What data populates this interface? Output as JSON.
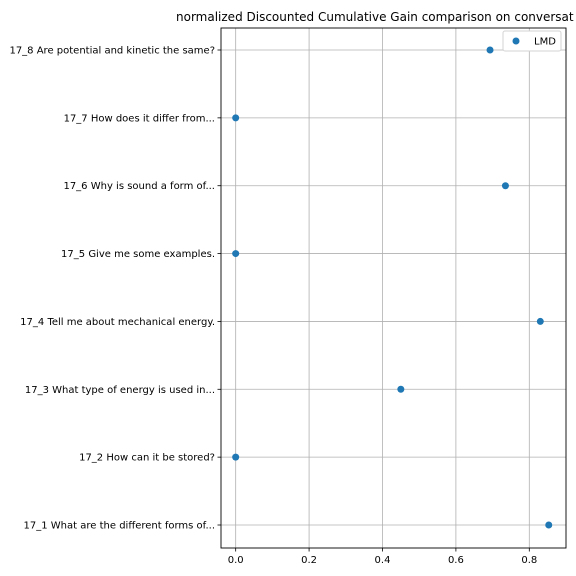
{
  "chart_data": {
    "type": "scatter",
    "title": "normalized Discounted Cumulative Gain comparison on conversat",
    "xlabel": "",
    "ylabel": "",
    "xlim": [
      -0.04,
      0.9
    ],
    "x_ticks": [
      0.0,
      0.2,
      0.4,
      0.6,
      0.8
    ],
    "x_tick_labels": [
      "0.0",
      "0.2",
      "0.4",
      "0.6",
      "0.8"
    ],
    "categories": [
      "17_1 What are the different forms of...",
      "17_2 How can it be stored?",
      "17_3 What type of energy is used in...",
      "17_4 Tell me about mechanical energy.",
      "17_5 Give me some examples.",
      "17_6 Why is sound a form of...",
      "17_7 How does it differ from...",
      "17_8 Are potential and kinetic the same?"
    ],
    "grid": true,
    "legend_position": "top-right",
    "series": [
      {
        "name": "LMD",
        "color": "#1f77b4",
        "values": [
          0.853,
          0.0,
          0.45,
          0.83,
          0.0,
          0.735,
          0.0,
          0.693
        ]
      }
    ]
  }
}
